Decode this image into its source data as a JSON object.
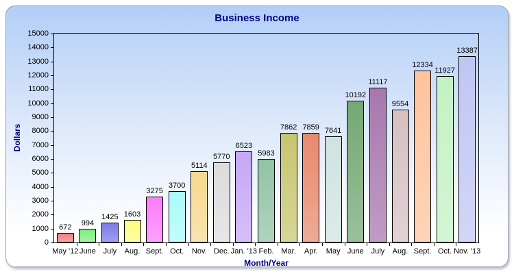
{
  "chart_data": {
    "type": "bar",
    "title": "Business Income",
    "xlabel": "Month/Year",
    "ylabel": "Dollars",
    "categories": [
      "May '12",
      "June",
      "July",
      "Aug.",
      "Sept.",
      "Oct.",
      "Nov.",
      "Dec.",
      "Jan. '13",
      "Feb.",
      "Mar.",
      "Apr.",
      "May",
      "June",
      "July",
      "Aug.",
      "Sept.",
      "Oct.",
      "Nov. '13"
    ],
    "values": [
      672,
      994,
      1425,
      1603,
      3275,
      3700,
      5114,
      5770,
      6523,
      5983,
      7862,
      7859,
      7641,
      10192,
      11117,
      9554,
      12334,
      11927,
      13387
    ],
    "bar_colors": [
      "#F97D7D",
      "#7CEF7C",
      "#7A7AE9",
      "#FDFD7E",
      "#FB7DFB",
      "#A8FBFB",
      "#F7D88F",
      "#DCDCDC",
      "#C5A7F6",
      "#90C3A6",
      "#C6C670",
      "#E78A6D",
      "#CFE3E0",
      "#74A874",
      "#A777AD",
      "#D5C0C2",
      "#FEC39D",
      "#C3F2C3",
      "#C0C6F4"
    ],
    "ylim": [
      0,
      15000
    ],
    "ytick_step": 1000,
    "grid": false,
    "legend_position": "none",
    "value_labels": true
  },
  "colors": {
    "title_text": "#000080",
    "axis_title_text": "#000080",
    "tick_text": "#000000",
    "plot_border": "#000000",
    "card_gradient_top": "#B2CEF7",
    "card_gradient_bottom": "#FFFFFF",
    "card_border": "#98A2B3"
  }
}
